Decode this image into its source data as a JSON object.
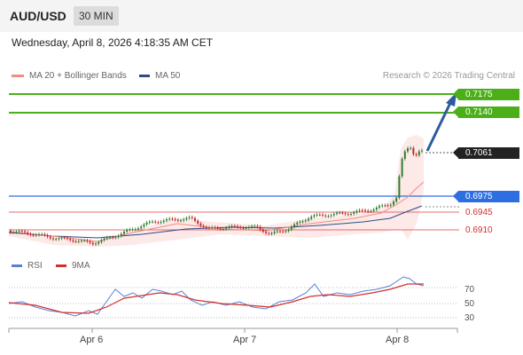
{
  "header": {
    "symbol": "AUD/USD",
    "timeframe": "30 MIN"
  },
  "datetime": "Wednesday, April 8, 2026 4:18:35 AM CET",
  "legend": {
    "items": [
      {
        "label": "MA 20 + Bollinger Bands",
        "color": "#f28b82"
      },
      {
        "label": "MA 50",
        "color": "#2b4c8c"
      }
    ],
    "copyright": "Research © 2026 Trading Central"
  },
  "price_levels": {
    "target_2": "0.7175",
    "target_1": "0.7140",
    "current": "0.7061",
    "pivot": "0.6975",
    "support_1": "0.6945",
    "support_2": "0.6910"
  },
  "rsi_legend": {
    "rsi_label": "RSI",
    "rsi_color": "#5b7fd6",
    "ma_label": "9MA",
    "ma_color": "#d0312d"
  },
  "rsi_axis": [
    "70",
    "50",
    "30"
  ],
  "x_axis": [
    "Apr 6",
    "Apr 7",
    "Apr 8"
  ],
  "colors": {
    "target_line": "#4caf1a",
    "pivot_line": "#2d6fe0",
    "support_line": "#e07070",
    "arrow": "#2b5d9e",
    "candle_up": "#2e7d32",
    "candle_down": "#c62828"
  }
}
